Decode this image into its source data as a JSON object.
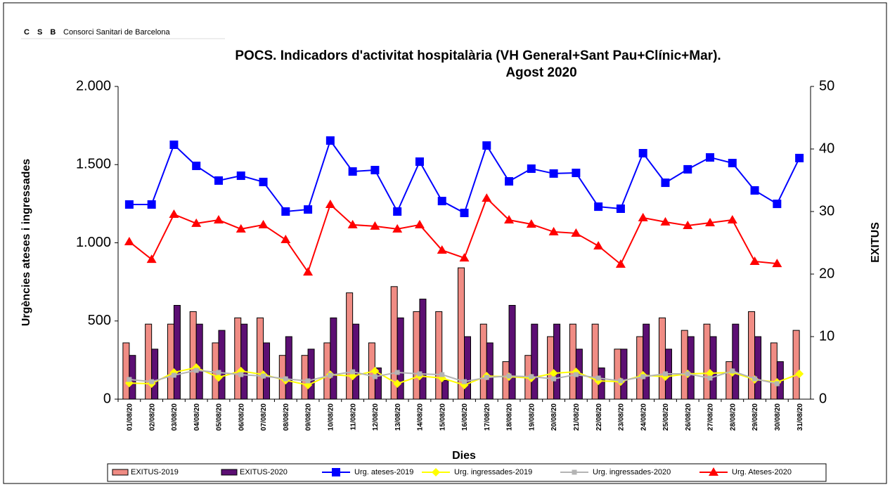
{
  "header": {
    "logo": "C S B",
    "org": "Consorci Sanitari de Barcelona"
  },
  "chart_data": {
    "type": "combo",
    "title_lines": [
      "POCS.  Indicadors d'activitat hospitalària (VH General+Sant Pau+Clínic+Mar).",
      "Agost  2020"
    ],
    "ylabel": "Urgències ateses i ingressades",
    "y2label": "EXITUS",
    "xlabel": "Dies",
    "categories": [
      "01/08/20",
      "02/08/20",
      "03/08/20",
      "04/08/20",
      "05/08/20",
      "06/08/20",
      "07/08/20",
      "08/08/20",
      "09/08/20",
      "10/08/20",
      "11/08/20",
      "12/08/20",
      "13/08/20",
      "14/08/20",
      "15/08/20",
      "16/08/20",
      "17/08/20",
      "18/08/20",
      "19/08/20",
      "20/08/20",
      "21/08/20",
      "22/08/20",
      "23/08/20",
      "24/08/20",
      "25/08/20",
      "26/08/20",
      "27/08/20",
      "28/08/20",
      "29/08/20",
      "30/08/20",
      "31/08/20"
    ],
    "ylim": [
      0,
      2000
    ],
    "yticks": [
      0,
      500,
      {
        "value": 1000,
        "label": "1.000"
      },
      {
        "value": 1500,
        "label": "1.500"
      },
      {
        "value": 2000,
        "label": "2.000"
      }
    ],
    "y2lim": [
      0,
      50
    ],
    "y2ticks": [
      0,
      10,
      20,
      30,
      40,
      50
    ],
    "legend": "bottom",
    "series": [
      {
        "name": "EXITUS-2019",
        "type": "bar",
        "axis": "y2",
        "color": "#f08c84",
        "values": [
          9,
          12,
          12,
          14,
          9,
          13,
          13,
          7,
          7,
          9,
          17,
          9,
          18,
          14,
          14,
          21,
          12,
          6,
          7,
          10,
          12,
          12,
          8,
          10,
          13,
          11,
          12,
          6,
          14,
          9,
          11
        ]
      },
      {
        "name": "EXITUS-2020",
        "type": "bar",
        "axis": "y2",
        "color": "#5c0f73",
        "values": [
          7,
          8,
          15,
          12,
          11,
          12,
          9,
          10,
          8,
          13,
          12,
          5,
          13,
          16,
          3,
          10,
          9,
          15,
          12,
          12,
          8,
          5,
          8,
          12,
          8,
          10,
          10,
          12,
          10,
          6,
          null
        ]
      },
      {
        "name": "Urg. ateses-2019",
        "type": "line",
        "marker": "square",
        "color": "#0000ff",
        "values": [
          1245,
          1245,
          1627,
          1492,
          1398,
          1429,
          1389,
          1200,
          1213,
          1654,
          1456,
          1465,
          1200,
          1519,
          1267,
          1191,
          1622,
          1393,
          1474,
          1443,
          1447,
          1231,
          1218,
          1573,
          1384,
          1470,
          1546,
          1510,
          1335,
          1249,
          1542
        ]
      },
      {
        "name": "Urg. ingressades-2019",
        "type": "line",
        "marker": "diamond",
        "color": "#ffff00",
        "values": [
          103,
          99,
          171,
          202,
          139,
          180,
          157,
          121,
          90,
          157,
          148,
          180,
          99,
          148,
          135,
          90,
          148,
          144,
          135,
          166,
          175,
          117,
          112,
          153,
          144,
          162,
          166,
          171,
          126,
          108,
          162
        ]
      },
      {
        "name": "Urg. ingressades-2020",
        "type": "line",
        "marker": "square-small",
        "color": "#b4b4b4",
        "values": [
          126,
          112,
          153,
          184,
          171,
          157,
          148,
          130,
          117,
          153,
          175,
          144,
          171,
          162,
          157,
          112,
          139,
          148,
          144,
          130,
          157,
          135,
          117,
          144,
          162,
          162,
          135,
          180,
          130,
          99,
          null
        ]
      },
      {
        "name": "Urg. Ateses-2020",
        "type": "line",
        "marker": "triangle",
        "color": "#ff0000",
        "values": [
          1007,
          894,
          1182,
          1124,
          1146,
          1088,
          1115,
          1020,
          813,
          1245,
          1115,
          1106,
          1088,
          1115,
          953,
          903,
          1285,
          1146,
          1119,
          1070,
          1061,
          980,
          863,
          1160,
          1133,
          1110,
          1128,
          1146,
          881,
          867,
          null
        ]
      }
    ]
  }
}
